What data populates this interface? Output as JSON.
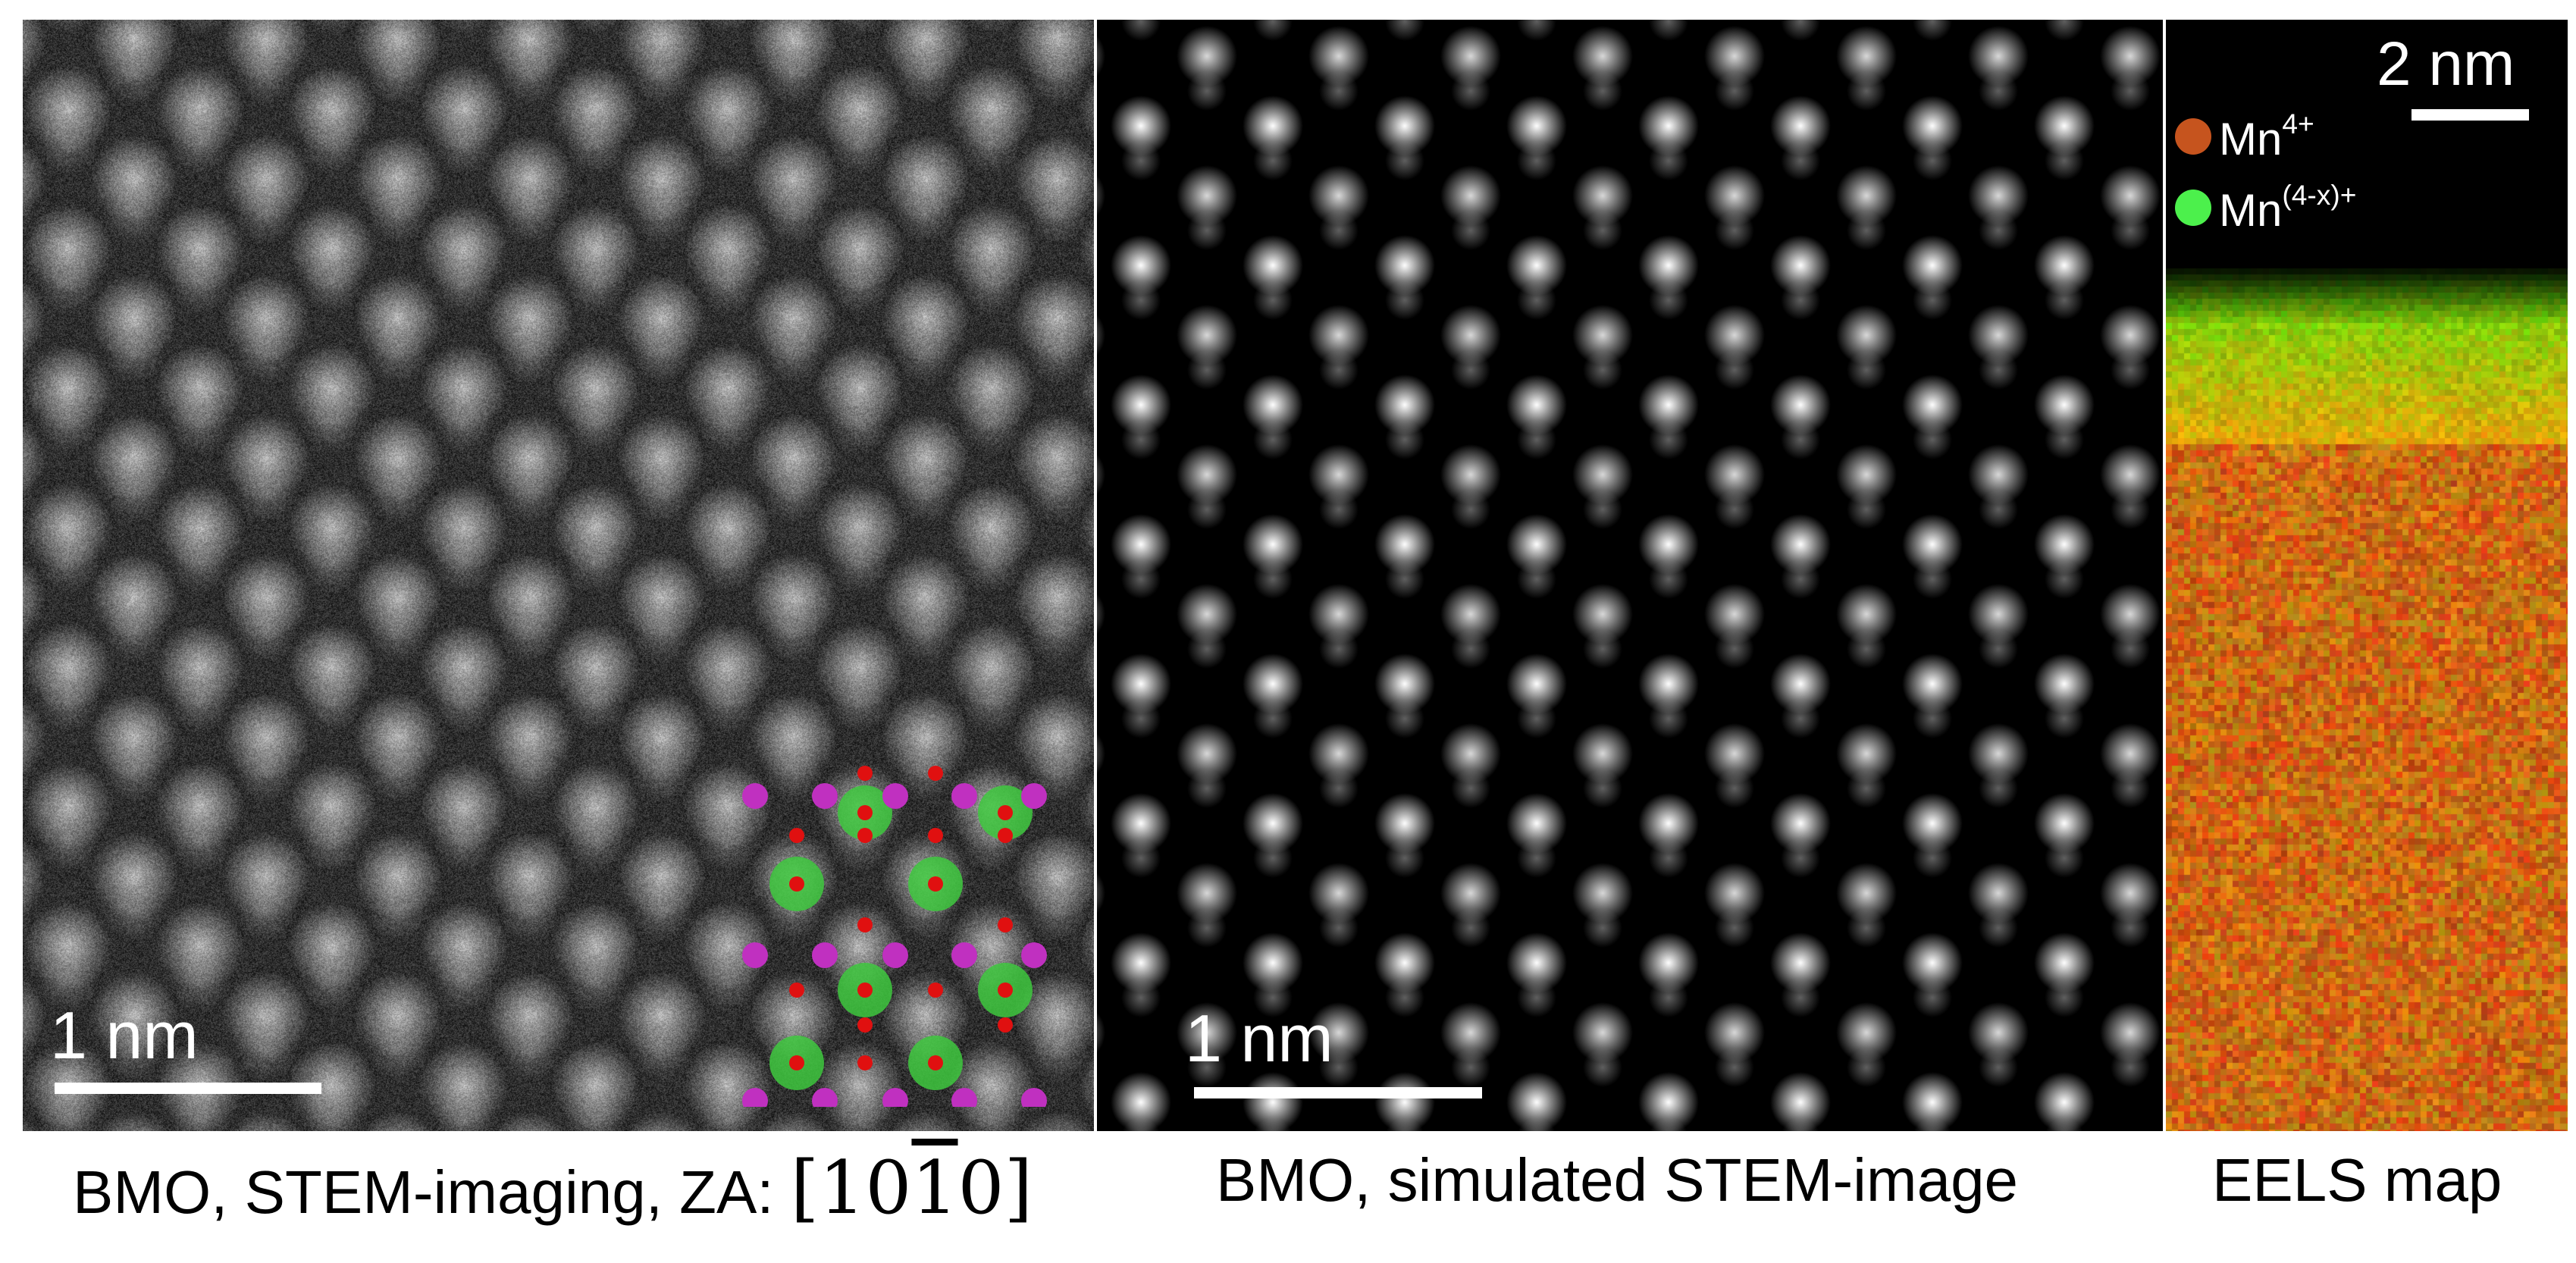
{
  "panels": {
    "stem": {
      "scalebar": "1 nm",
      "caption_prefix": "BMO, STEM-imaging, ZA: ",
      "za_digits": [
        "1",
        "0",
        "1",
        "0"
      ]
    },
    "simulated": {
      "scalebar": "1 nm",
      "caption": "BMO, simulated STEM-image"
    },
    "eels": {
      "scalebar": "2 nm",
      "caption": "EELS map",
      "legend": [
        {
          "base": "Mn",
          "sup": "4+",
          "color": "#c6541e"
        },
        {
          "base": "Mn",
          "sup": "(4-x)+",
          "color": "#4cf04c"
        }
      ]
    }
  },
  "colors": {
    "inset_large_atom": "#3ec83e",
    "inset_purple_atom": "#c030c0",
    "inset_red_atom": "#e01010"
  }
}
